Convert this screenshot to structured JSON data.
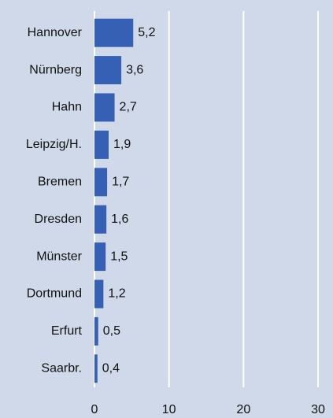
{
  "chart_data": {
    "type": "bar",
    "orientation": "horizontal",
    "categories": [
      "Hannover",
      "Nürnberg",
      "Hahn",
      "Leipzig/H.",
      "Bremen",
      "Dresden",
      "Münster",
      "Dortmund",
      "Erfurt",
      "Saarbr."
    ],
    "values": [
      5.2,
      3.6,
      2.7,
      1.9,
      1.7,
      1.6,
      1.5,
      1.2,
      0.5,
      0.4
    ],
    "value_labels": [
      "5,2",
      "3,6",
      "2,7",
      "1,9",
      "1,7",
      "1,6",
      "1,5",
      "1,2",
      "0,5",
      "0,4"
    ],
    "color": "#3660b4",
    "xlim": [
      0,
      30
    ],
    "xticks": [
      0,
      10,
      20,
      30
    ],
    "grid": true
  }
}
